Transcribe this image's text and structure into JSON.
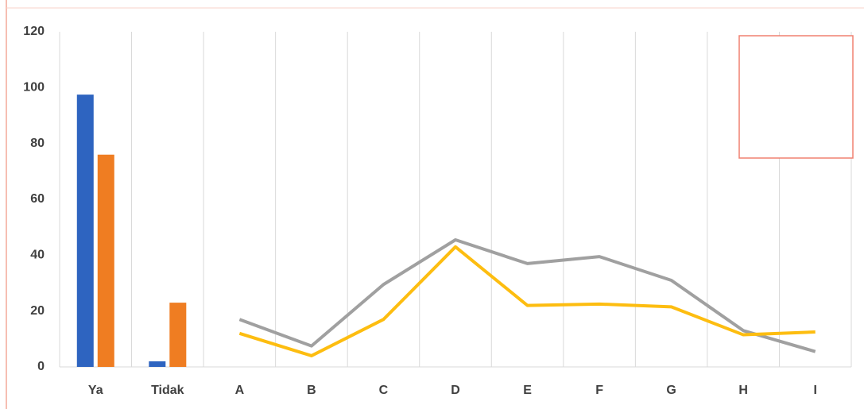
{
  "chart_data": {
    "type": "bar",
    "categories": [
      "Ya",
      "Tidak",
      "A",
      "B",
      "C",
      "D",
      "E",
      "F",
      "G",
      "H",
      "I"
    ],
    "series": [
      {
        "type": "bar",
        "color": "#2e64c0",
        "values": [
          97.5,
          2,
          null,
          null,
          null,
          null,
          null,
          null,
          null,
          null,
          null
        ]
      },
      {
        "type": "bar",
        "color": "#ef7d22",
        "values": [
          76,
          23,
          null,
          null,
          null,
          null,
          null,
          null,
          null,
          null,
          null
        ]
      },
      {
        "type": "line",
        "color": "#a0a0a0",
        "values": [
          null,
          null,
          17,
          7.5,
          29.5,
          45.5,
          37,
          39.5,
          31,
          13,
          5.5
        ]
      },
      {
        "type": "line",
        "color": "#fdbd10",
        "values": [
          null,
          null,
          12,
          4,
          17,
          43,
          22,
          22.5,
          21.5,
          11.5,
          12.5
        ]
      }
    ],
    "ylim": [
      0,
      120
    ],
    "yticks": [
      0,
      20,
      40,
      60,
      80,
      100,
      120
    ],
    "grid": true
  }
}
